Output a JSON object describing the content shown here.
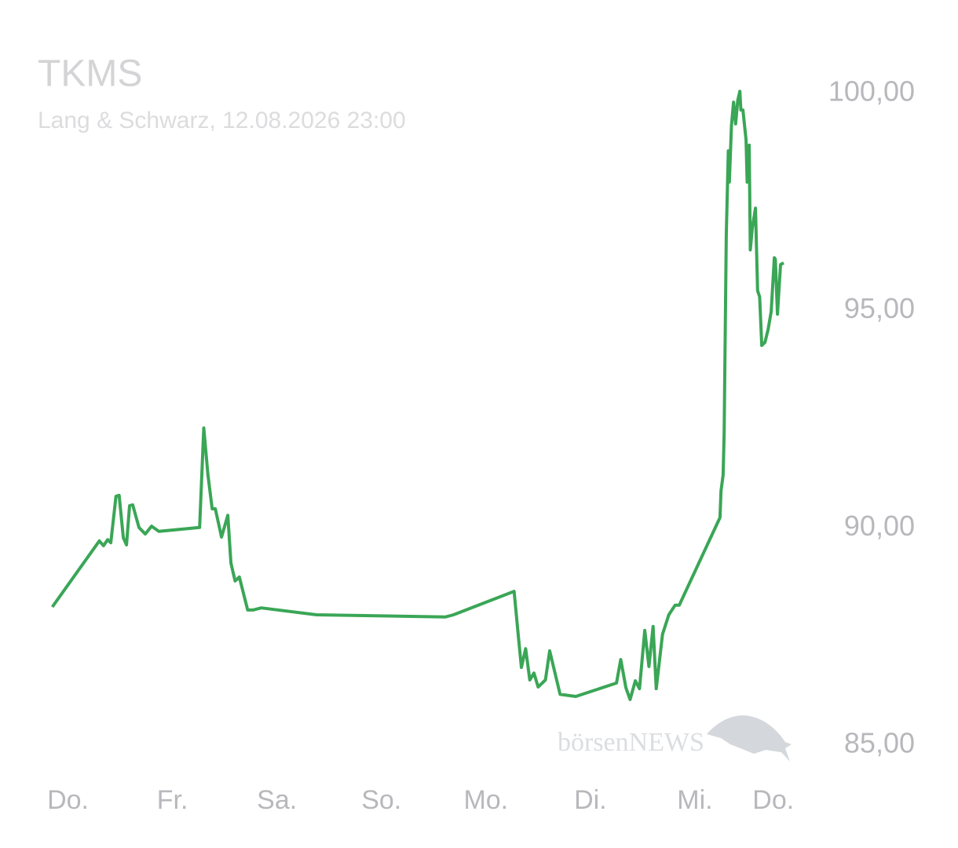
{
  "chart_data": {
    "type": "line",
    "title": "TKMS",
    "subtitle": "Lang & Schwarz, 12.08.2026 23:00",
    "watermark": "börsenNEWS",
    "color": "#3aa656",
    "xlim": [
      -0.5,
      7
    ],
    "xticks": [
      {
        "value": 0,
        "label": "Do."
      },
      {
        "value": 1,
        "label": "Fr."
      },
      {
        "value": 2,
        "label": "Sa."
      },
      {
        "value": 3,
        "label": "So."
      },
      {
        "value": 4,
        "label": "Mo."
      },
      {
        "value": 5,
        "label": "Di."
      },
      {
        "value": 6,
        "label": "Mi."
      },
      {
        "value": 6.75,
        "label": "Do."
      }
    ],
    "ylim": [
      83.5,
      101
    ],
    "yticks": [
      {
        "value": 85,
        "label": "85,00"
      },
      {
        "value": 90,
        "label": "90,00"
      },
      {
        "value": 95,
        "label": "95,00"
      },
      {
        "value": 100,
        "label": "100,00"
      }
    ],
    "x": [
      -0.15,
      0.3,
      0.34,
      0.38,
      0.41,
      0.46,
      0.49,
      0.53,
      0.56,
      0.59,
      0.62,
      0.68,
      0.74,
      0.8,
      0.87,
      1.26,
      1.3,
      1.34,
      1.38,
      1.41,
      1.47,
      1.53,
      1.56,
      1.6,
      1.64,
      1.72,
      1.77,
      1.85,
      2.38,
      3.61,
      3.69,
      4.27,
      4.31,
      4.34,
      4.38,
      4.42,
      4.46,
      4.5,
      4.57,
      4.61,
      4.71,
      4.77,
      4.86,
      5.25,
      5.29,
      5.34,
      5.38,
      5.43,
      5.47,
      5.52,
      5.56,
      5.6,
      5.63,
      5.69,
      5.75,
      5.81,
      5.85,
      6.24,
      6.25,
      6.27,
      6.28,
      6.3,
      6.32,
      6.33,
      6.35,
      6.37,
      6.39,
      6.41,
      6.43,
      6.44,
      6.46,
      6.49,
      6.5,
      6.52,
      6.53,
      6.55,
      6.58,
      6.6,
      6.62,
      6.64,
      6.67,
      6.7,
      6.73,
      6.76,
      6.77,
      6.79,
      6.82,
      6.85
    ],
    "values": [
      88.18,
      89.7,
      89.59,
      89.73,
      89.66,
      90.73,
      90.75,
      89.77,
      89.61,
      90.51,
      90.53,
      90.01,
      89.86,
      90.04,
      89.92,
      90.01,
      92.3,
      91.22,
      90.44,
      90.44,
      89.79,
      90.29,
      89.19,
      88.78,
      88.87,
      88.11,
      88.11,
      88.16,
      88.0,
      87.95,
      88.0,
      88.54,
      87.51,
      86.79,
      87.22,
      86.5,
      86.66,
      86.34,
      86.5,
      87.17,
      86.17,
      86.15,
      86.12,
      86.43,
      86.97,
      86.32,
      86.05,
      86.48,
      86.3,
      87.64,
      86.81,
      87.73,
      86.3,
      87.55,
      88.0,
      88.22,
      88.22,
      90.24,
      90.85,
      91.22,
      92.19,
      96.73,
      98.68,
      97.96,
      99.26,
      99.8,
      99.3,
      99.84,
      100.05,
      99.62,
      99.62,
      98.93,
      97.96,
      98.81,
      96.4,
      96.91,
      97.36,
      95.46,
      95.32,
      94.2,
      94.27,
      94.56,
      94.98,
      96.22,
      96.18,
      94.92,
      96.06,
      96.1
    ]
  }
}
